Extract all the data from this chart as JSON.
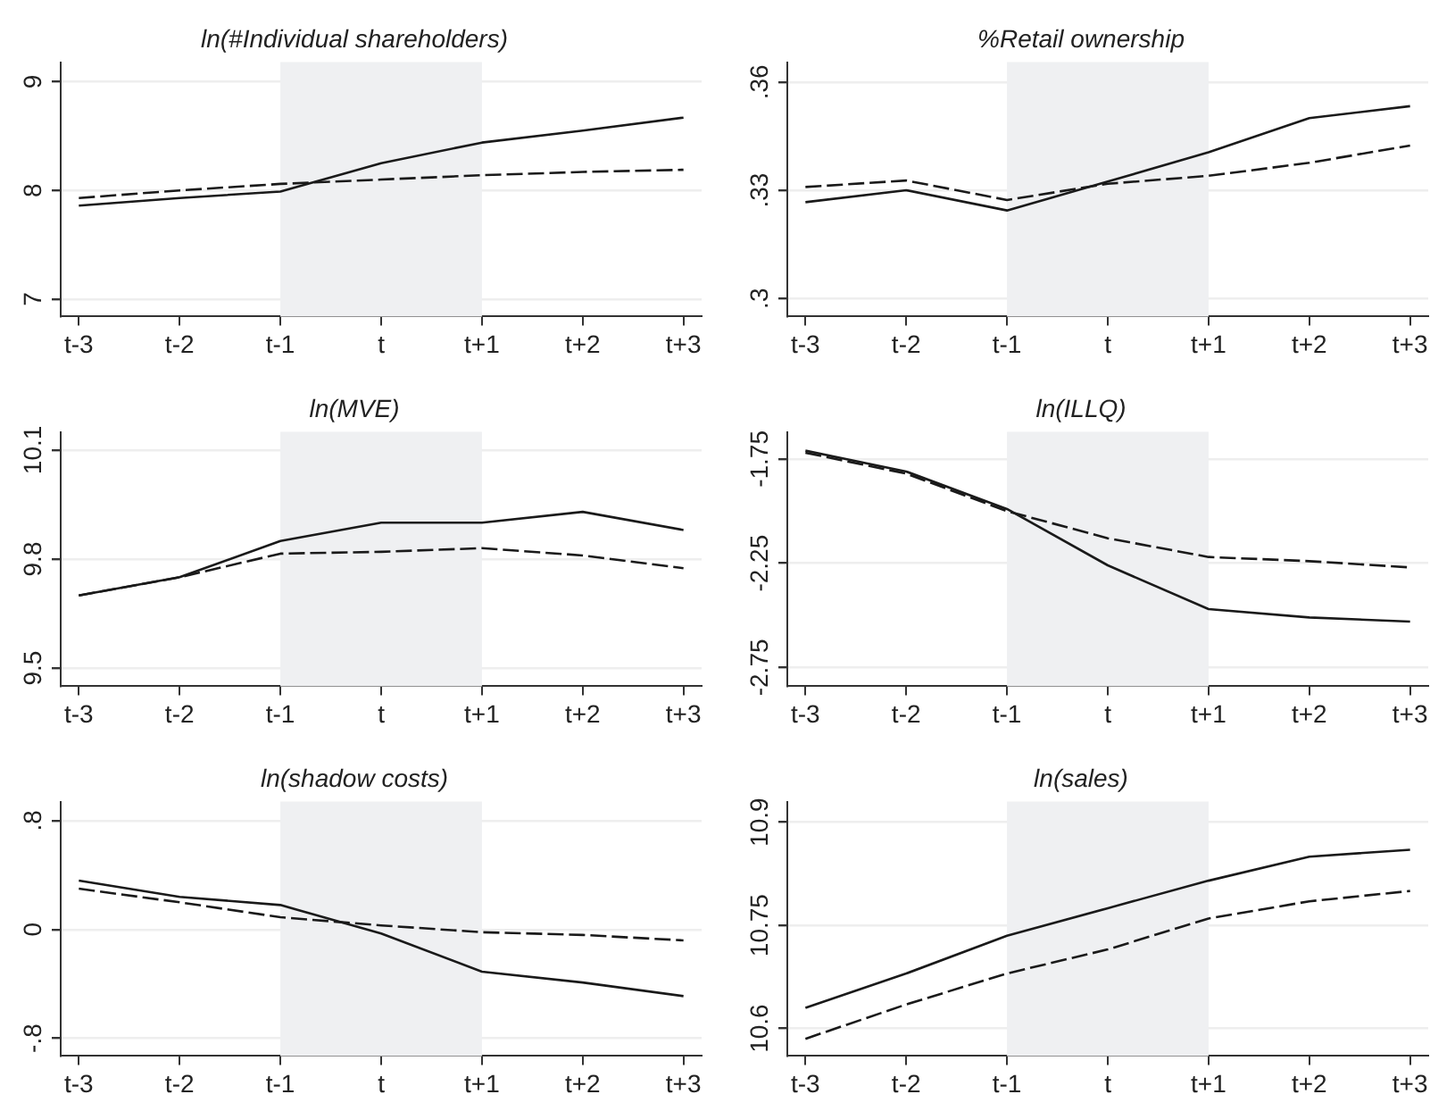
{
  "chart_data": [
    {
      "type": "line",
      "title": "ln(#Individual shareholders)",
      "categories": [
        "t-3",
        "t-2",
        "t-1",
        "t",
        "t+1",
        "t+2",
        "t+3"
      ],
      "ylim": [
        6.84,
        9.18
      ],
      "yticks": [
        7,
        8,
        9
      ],
      "grid": "y",
      "marker": "none",
      "series": [
        {
          "color": "#1a1a1a",
          "line_style": "solid",
          "values": [
            7.86,
            7.93,
            7.99,
            8.25,
            8.44,
            8.55,
            8.67
          ]
        },
        {
          "color": "#1a1a1a",
          "line_style": "dashed",
          "values": [
            7.93,
            8.0,
            8.06,
            8.1,
            8.14,
            8.17,
            8.19
          ]
        }
      ],
      "bands": [
        {
          "axis": "x",
          "from": "t-1",
          "to": "t+1",
          "color": "#eff0f2"
        }
      ]
    },
    {
      "type": "line",
      "title": "%Retail ownership",
      "categories": [
        "t-3",
        "t-2",
        "t-1",
        "t",
        "t+1",
        "t+2",
        "t+3"
      ],
      "ylim": [
        0.295,
        0.3655
      ],
      "yticks": [
        {
          "value": 0.3,
          "label": ".3"
        },
        {
          "value": 0.33,
          "label": ".33"
        },
        {
          "value": 0.36,
          "label": ".36"
        }
      ],
      "grid": "y",
      "marker": "none",
      "series": [
        {
          "color": "#1a1a1a",
          "line_style": "solid",
          "values": [
            0.3267,
            0.33,
            0.3244,
            0.3324,
            0.3405,
            0.35,
            0.3533
          ]
        },
        {
          "color": "#1a1a1a",
          "line_style": "dashed",
          "values": [
            0.3309,
            0.3327,
            0.3273,
            0.3318,
            0.334,
            0.3376,
            0.3424
          ]
        }
      ],
      "bands": [
        {
          "axis": "x",
          "from": "t-1",
          "to": "t+1",
          "color": "#eff0f2"
        }
      ]
    },
    {
      "type": "line",
      "title": "ln(MVE)",
      "categories": [
        "t-3",
        "t-2",
        "t-1",
        "t",
        "t+1",
        "t+2",
        "t+3"
      ],
      "ylim": [
        9.45,
        10.15
      ],
      "yticks": [
        9.5,
        9.8,
        10.1
      ],
      "grid": "y",
      "marker": "none",
      "series": [
        {
          "color": "#1a1a1a",
          "line_style": "solid",
          "values": [
            9.7,
            9.75,
            9.85,
            9.9,
            9.9,
            9.93,
            9.88
          ]
        },
        {
          "color": "#1a1a1a",
          "line_style": "dashed",
          "values": [
            9.7,
            9.75,
            9.815,
            9.82,
            9.83,
            9.81,
            9.775
          ]
        }
      ],
      "bands": [
        {
          "axis": "x",
          "from": "t-1",
          "to": "t+1",
          "color": "#eff0f2"
        }
      ]
    },
    {
      "type": "line",
      "title": "ln(ILLQ)",
      "categories": [
        "t-3",
        "t-2",
        "t-1",
        "t",
        "t+1",
        "t+2",
        "t+3"
      ],
      "ylim": [
        -2.84,
        -1.62
      ],
      "yticks": [
        -2.75,
        -2.25,
        -1.75
      ],
      "grid": "y",
      "marker": "none",
      "series": [
        {
          "color": "#1a1a1a",
          "line_style": "solid",
          "values": [
            -1.71,
            -1.81,
            -1.99,
            -2.26,
            -2.47,
            -2.51,
            -2.53
          ]
        },
        {
          "color": "#1a1a1a",
          "line_style": "dashed",
          "values": [
            -1.72,
            -1.82,
            -2.0,
            -2.13,
            -2.22,
            -2.24,
            -2.27
          ]
        }
      ],
      "bands": [
        {
          "axis": "x",
          "from": "t-1",
          "to": "t+1",
          "color": "#eff0f2"
        }
      ]
    },
    {
      "type": "line",
      "title": "ln(shadow costs)",
      "categories": [
        "t-3",
        "t-2",
        "t-1",
        "t",
        "t+1",
        "t+2",
        "t+3"
      ],
      "ylim": [
        -0.93,
        0.94
      ],
      "yticks": [
        {
          "value": -0.8,
          "label": "-.8"
        },
        0,
        {
          "value": 0.8,
          "label": ".8"
        }
      ],
      "grid": "y",
      "marker": "none",
      "series": [
        {
          "color": "#1a1a1a",
          "line_style": "solid",
          "values": [
            0.36,
            0.24,
            0.18,
            -0.03,
            -0.31,
            -0.39,
            -0.49
          ]
        },
        {
          "color": "#1a1a1a",
          "line_style": "dashed",
          "values": [
            0.3,
            0.2,
            0.09,
            0.03,
            -0.02,
            -0.04,
            -0.08
          ]
        }
      ],
      "bands": [
        {
          "axis": "x",
          "from": "t-1",
          "to": "t+1",
          "color": "#eff0f2"
        }
      ]
    },
    {
      "type": "line",
      "title": "ln(sales)",
      "categories": [
        "t-3",
        "t-2",
        "t-1",
        "t",
        "t+1",
        "t+2",
        "t+3"
      ],
      "ylim": [
        10.56,
        10.93
      ],
      "yticks": [
        10.6,
        10.75,
        10.9
      ],
      "grid": "y",
      "marker": "none",
      "series": [
        {
          "color": "#1a1a1a",
          "line_style": "solid",
          "values": [
            10.63,
            10.68,
            10.735,
            10.775,
            10.815,
            10.85,
            10.86
          ]
        },
        {
          "color": "#1a1a1a",
          "line_style": "dashed",
          "values": [
            10.585,
            10.635,
            10.68,
            10.715,
            10.76,
            10.785,
            10.8
          ]
        }
      ],
      "bands": [
        {
          "axis": "x",
          "from": "t-1",
          "to": "t+1",
          "color": "#eff0f2"
        }
      ]
    }
  ]
}
